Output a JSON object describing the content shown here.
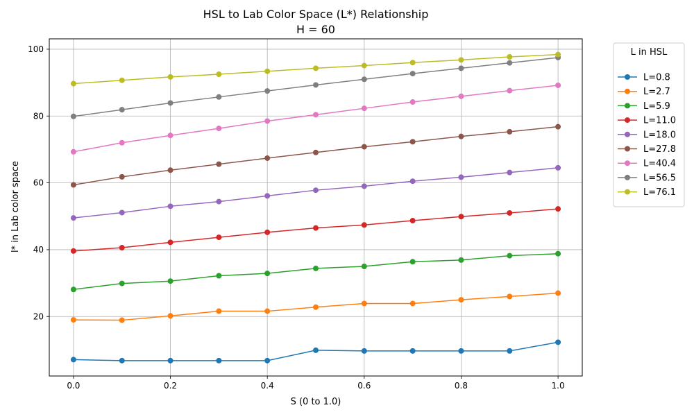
{
  "chart_data": {
    "type": "line",
    "title": "HSL to Lab Color Space (L*) Relationship",
    "subtitle": "H = 60",
    "xlabel": "S (0 to 1.0)",
    "ylabel": "l* in Lab color space",
    "xlim": [
      -0.05,
      1.05
    ],
    "ylim": [
      2.2,
      103.1
    ],
    "x_ticks": [
      0.0,
      0.2,
      0.4,
      0.6,
      0.8,
      1.0
    ],
    "x_tick_labels": [
      "0.0",
      "0.2",
      "0.4",
      "0.6",
      "0.8",
      "1.0"
    ],
    "y_ticks": [
      20,
      40,
      60,
      80,
      100
    ],
    "y_tick_labels": [
      "20",
      "40",
      "60",
      "80",
      "100"
    ],
    "grid": true,
    "legend": {
      "title": "L in HSL",
      "placement": "outside-right"
    },
    "x": [
      0.0,
      0.1,
      0.2,
      0.3,
      0.4,
      0.5,
      0.6,
      0.7,
      0.8,
      0.9,
      1.0
    ],
    "series": [
      {
        "name": "L=0.8",
        "color": "#1f77b4",
        "values": [
          7.1,
          6.8,
          6.8,
          6.8,
          6.8,
          9.9,
          9.7,
          9.7,
          9.7,
          9.7,
          12.3
        ]
      },
      {
        "name": "L=2.7",
        "color": "#ff7f0e",
        "values": [
          19.0,
          18.9,
          20.2,
          21.6,
          21.6,
          22.8,
          23.9,
          23.9,
          25.0,
          26.0,
          27.0
        ]
      },
      {
        "name": "L=5.9",
        "color": "#2ca02c",
        "values": [
          28.1,
          29.9,
          30.6,
          32.2,
          32.9,
          34.4,
          35.0,
          36.4,
          36.9,
          38.2,
          38.8
        ]
      },
      {
        "name": "L=11.0",
        "color": "#d62728",
        "values": [
          39.6,
          40.6,
          42.2,
          43.7,
          45.2,
          46.5,
          47.4,
          48.7,
          49.9,
          51.0,
          52.2
        ]
      },
      {
        "name": "L=18.0",
        "color": "#9467bd",
        "values": [
          49.5,
          51.1,
          53.0,
          54.4,
          56.1,
          57.8,
          59.0,
          60.5,
          61.7,
          63.1,
          64.5
        ]
      },
      {
        "name": "L=27.8",
        "color": "#8c564b",
        "values": [
          59.4,
          61.8,
          63.8,
          65.6,
          67.4,
          69.1,
          70.8,
          72.3,
          73.9,
          75.3,
          76.8
        ]
      },
      {
        "name": "L=40.4",
        "color": "#e377c2",
        "values": [
          69.3,
          72.0,
          74.2,
          76.3,
          78.5,
          80.4,
          82.3,
          84.2,
          85.9,
          87.6,
          89.2
        ]
      },
      {
        "name": "L=56.5",
        "color": "#7f7f7f",
        "values": [
          79.9,
          81.9,
          83.9,
          85.7,
          87.5,
          89.3,
          91.0,
          92.7,
          94.3,
          95.9,
          97.5
        ]
      },
      {
        "name": "L=76.1",
        "color": "#bcbd22",
        "values": [
          89.7,
          90.7,
          91.7,
          92.5,
          93.4,
          94.3,
          95.1,
          96.0,
          96.8,
          97.7,
          98.4
        ]
      }
    ]
  }
}
